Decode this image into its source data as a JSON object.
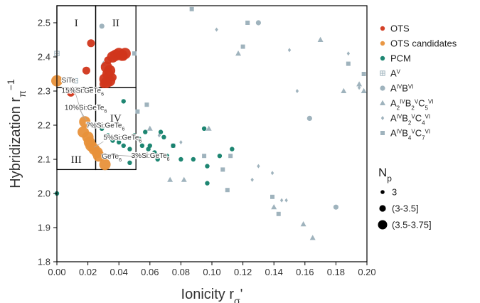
{
  "chart_data": {
    "type": "scatter",
    "title": "",
    "xlabel": "Ionicity r",
    "xlabel_sub": "σ",
    "xlabel_suffix": "'",
    "ylabel": "Hybridization r",
    "ylabel_sub": "π",
    "ylabel_sup": "−1",
    "xlim": [
      0.0,
      0.2
    ],
    "ylim": [
      1.8,
      2.55
    ],
    "xticks": [
      "0.00",
      "0.02",
      "0.04",
      "0.06",
      "0.08",
      "0.10",
      "0.12",
      "0.14",
      "0.16",
      "0.18",
      "0.20"
    ],
    "yticks": [
      "1.8",
      "1.9",
      "2.0",
      "2.1",
      "2.2",
      "2.3",
      "2.4",
      "2.5"
    ],
    "grid": false,
    "legend_position": "right",
    "regions": [
      {
        "label": "I",
        "x": [
          0.0,
          0.025
        ],
        "y": [
          2.31,
          2.55
        ]
      },
      {
        "label": "II",
        "x": [
          0.025,
          0.051
        ],
        "y": [
          2.31,
          2.55
        ]
      },
      {
        "label": "III",
        "x": [
          0.0,
          0.025
        ],
        "y": [
          2.07,
          2.31
        ]
      },
      {
        "label": "IV",
        "x": [
          0.025,
          0.051
        ],
        "y": [
          2.07,
          2.31
        ]
      }
    ],
    "annotations": [
      {
        "text": "SiTe",
        "x": 0.003,
        "y": 2.325
      },
      {
        "text": "15%Si:GeTe",
        "sub": "6",
        "x": 0.003,
        "y": 2.295
      },
      {
        "text": "10%Si:GeTe",
        "sub": "6",
        "x": 0.005,
        "y": 2.245
      },
      {
        "text": "7%Si:GeTe",
        "sub": "6",
        "x": 0.019,
        "y": 2.193
      },
      {
        "text": "5%Si:GeTe",
        "sub": "6",
        "x": 0.03,
        "y": 2.157
      },
      {
        "text": "3%Si:GeTe",
        "sub": "6",
        "x": 0.048,
        "y": 2.104
      },
      {
        "text": "GeTe",
        "sub": "6",
        "x": 0.029,
        "y": 2.102
      }
    ],
    "size_legend": {
      "title": "N",
      "title_sub": "p",
      "entries": [
        "3",
        "(3-3.5]",
        "(3.5-3.75]"
      ]
    },
    "series": [
      {
        "name": "OTS",
        "marker": "circle",
        "color": "#d1361b",
        "points": [
          {
            "x": 0.022,
            "y": 2.44,
            "s": 2
          },
          {
            "x": 0.019,
            "y": 2.36,
            "s": 2
          },
          {
            "x": 0.009,
            "y": 2.295,
            "s": 2
          },
          {
            "x": 0.036,
            "y": 2.4,
            "s": 3
          },
          {
            "x": 0.038,
            "y": 2.405,
            "s": 3
          },
          {
            "x": 0.04,
            "y": 2.41,
            "s": 3
          },
          {
            "x": 0.042,
            "y": 2.405,
            "s": 3
          },
          {
            "x": 0.044,
            "y": 2.41,
            "s": 3
          },
          {
            "x": 0.043,
            "y": 2.4,
            "s": 2
          },
          {
            "x": 0.033,
            "y": 2.39,
            "s": 2
          },
          {
            "x": 0.032,
            "y": 2.37,
            "s": 3
          },
          {
            "x": 0.034,
            "y": 2.36,
            "s": 3
          },
          {
            "x": 0.033,
            "y": 2.35,
            "s": 3
          },
          {
            "x": 0.031,
            "y": 2.335,
            "s": 3
          },
          {
            "x": 0.034,
            "y": 2.33,
            "s": 3
          },
          {
            "x": 0.032,
            "y": 2.325,
            "s": 3
          },
          {
            "x": 0.03,
            "y": 2.32,
            "s": 2
          },
          {
            "x": 0.036,
            "y": 2.34,
            "s": 2
          }
        ]
      },
      {
        "name": "OTS candidates",
        "marker": "circle",
        "color": "#e8913a",
        "points": [
          {
            "x": 0.0,
            "y": 2.33,
            "s": 3
          },
          {
            "x": 0.018,
            "y": 2.21,
            "s": 3
          },
          {
            "x": 0.017,
            "y": 2.18,
            "s": 3
          },
          {
            "x": 0.02,
            "y": 2.165,
            "s": 3
          },
          {
            "x": 0.021,
            "y": 2.15,
            "s": 3
          },
          {
            "x": 0.022,
            "y": 2.14,
            "s": 3
          },
          {
            "x": 0.024,
            "y": 2.13,
            "s": 3
          },
          {
            "x": 0.026,
            "y": 2.12,
            "s": 3
          },
          {
            "x": 0.027,
            "y": 2.11,
            "s": 3
          },
          {
            "x": 0.031,
            "y": 2.085,
            "s": 3
          }
        ]
      },
      {
        "name": "PCM",
        "marker": "circle",
        "color": "#12806a",
        "points": [
          {
            "x": 0.029,
            "y": 2.19,
            "s": 1
          },
          {
            "x": 0.033,
            "y": 2.17,
            "s": 1
          },
          {
            "x": 0.036,
            "y": 2.155,
            "s": 1
          },
          {
            "x": 0.04,
            "y": 2.15,
            "s": 1
          },
          {
            "x": 0.043,
            "y": 2.27,
            "s": 1
          },
          {
            "x": 0.043,
            "y": 2.14,
            "s": 1
          },
          {
            "x": 0.047,
            "y": 2.13,
            "s": 1
          },
          {
            "x": 0.047,
            "y": 2.09,
            "s": 1
          },
          {
            "x": 0.05,
            "y": 2.17,
            "s": 1
          },
          {
            "x": 0.053,
            "y": 2.16,
            "s": 1
          },
          {
            "x": 0.055,
            "y": 2.14,
            "s": 1
          },
          {
            "x": 0.057,
            "y": 2.18,
            "s": 1
          },
          {
            "x": 0.059,
            "y": 2.13,
            "s": 1
          },
          {
            "x": 0.06,
            "y": 2.14,
            "s": 1
          },
          {
            "x": 0.063,
            "y": 2.12,
            "s": 1
          },
          {
            "x": 0.065,
            "y": 2.1,
            "s": 1
          },
          {
            "x": 0.067,
            "y": 2.18,
            "s": 1
          },
          {
            "x": 0.069,
            "y": 2.165,
            "s": 1
          },
          {
            "x": 0.071,
            "y": 2.11,
            "s": 1
          },
          {
            "x": 0.075,
            "y": 2.14,
            "s": 1
          },
          {
            "x": 0.08,
            "y": 2.1,
            "s": 1
          },
          {
            "x": 0.088,
            "y": 2.1,
            "s": 1
          },
          {
            "x": 0.095,
            "y": 2.19,
            "s": 1
          },
          {
            "x": 0.097,
            "y": 2.08,
            "s": 1
          },
          {
            "x": 0.097,
            "y": 2.03,
            "s": 1
          },
          {
            "x": 0.105,
            "y": 2.11,
            "s": 1
          },
          {
            "x": 0.113,
            "y": 2.13,
            "s": 1
          },
          {
            "x": 0.0,
            "y": 2.0,
            "s": 1
          }
        ]
      },
      {
        "name": "A",
        "name_sup": "V",
        "marker": "square-plus",
        "color": "#9fb3bd",
        "points": [
          {
            "x": 0.0,
            "y": 2.41,
            "s": 1
          },
          {
            "x": 0.012,
            "y": 2.33,
            "s": 1
          }
        ]
      },
      {
        "name": "A",
        "name_sup": "IV",
        "name_b": "B",
        "name_b_sup": "VI",
        "marker": "circle-gray",
        "color": "#9fb3bd",
        "points": [
          {
            "x": 0.029,
            "y": 2.49,
            "s": 1
          },
          {
            "x": 0.13,
            "y": 2.5,
            "s": 1
          },
          {
            "x": 0.163,
            "y": 2.22,
            "s": 1
          },
          {
            "x": 0.18,
            "y": 1.96,
            "s": 1
          }
        ]
      },
      {
        "name": "A",
        "name_sup": "IV",
        "name_sub": "2",
        "name_b": "B",
        "name_b_sup": "V",
        "name_b_sub": "2",
        "name_c": "C",
        "name_c_sup": "VI",
        "name_c_sub": "5",
        "marker": "triangle",
        "color": "#9fb3bd",
        "points": [
          {
            "x": 0.03,
            "y": 2.38,
            "s": 1
          },
          {
            "x": 0.06,
            "y": 2.19,
            "s": 1
          },
          {
            "x": 0.073,
            "y": 2.04,
            "s": 1
          },
          {
            "x": 0.082,
            "y": 2.04,
            "s": 1
          },
          {
            "x": 0.098,
            "y": 2.19,
            "s": 1
          },
          {
            "x": 0.117,
            "y": 2.41,
            "s": 1
          },
          {
            "x": 0.14,
            "y": 1.96,
            "s": 1
          },
          {
            "x": 0.159,
            "y": 1.91,
            "s": 1
          },
          {
            "x": 0.165,
            "y": 1.87,
            "s": 1
          },
          {
            "x": 0.17,
            "y": 2.45,
            "s": 1
          },
          {
            "x": 0.185,
            "y": 2.3,
            "s": 1
          },
          {
            "x": 0.195,
            "y": 2.32,
            "s": 1
          },
          {
            "x": 0.198,
            "y": 2.3,
            "s": 1
          }
        ]
      },
      {
        "name": "A",
        "name_sup": "IV",
        "name_b": "B",
        "name_b_sup": "V",
        "name_b_sub": "2",
        "name_c": "C",
        "name_c_sup": "VI",
        "name_c_sub": "4",
        "marker": "diamond",
        "color": "#9fb3bd",
        "points": [
          {
            "x": 0.066,
            "y": 2.17,
            "s": 1
          },
          {
            "x": 0.08,
            "y": 2.15,
            "s": 1
          },
          {
            "x": 0.103,
            "y": 2.48,
            "s": 1
          },
          {
            "x": 0.126,
            "y": 2.04,
            "s": 1
          },
          {
            "x": 0.13,
            "y": 2.08,
            "s": 1
          },
          {
            "x": 0.139,
            "y": 2.06,
            "s": 1
          },
          {
            "x": 0.145,
            "y": 1.98,
            "s": 1
          },
          {
            "x": 0.148,
            "y": 1.98,
            "s": 1
          },
          {
            "x": 0.15,
            "y": 2.42,
            "s": 1
          },
          {
            "x": 0.155,
            "y": 2.3,
            "s": 1
          },
          {
            "x": 0.188,
            "y": 2.41,
            "s": 1
          },
          {
            "x": 0.195,
            "y": 2.31,
            "s": 1
          }
        ]
      },
      {
        "name": "A",
        "name_sup": "IV",
        "name_b": "B",
        "name_b_sup": "V",
        "name_b_sub": "4",
        "name_c": "C",
        "name_c_sup": "VI",
        "name_c_sub": "7",
        "marker": "square",
        "color": "#9fb3bd",
        "points": [
          {
            "x": 0.04,
            "y": 2.4,
            "s": 1
          },
          {
            "x": 0.05,
            "y": 2.41,
            "s": 1
          },
          {
            "x": 0.052,
            "y": 2.24,
            "s": 1
          },
          {
            "x": 0.058,
            "y": 2.26,
            "s": 1
          },
          {
            "x": 0.075,
            "y": 2.14,
            "s": 1
          },
          {
            "x": 0.087,
            "y": 2.54,
            "s": 1
          },
          {
            "x": 0.095,
            "y": 2.11,
            "s": 1
          },
          {
            "x": 0.107,
            "y": 2.07,
            "s": 1
          },
          {
            "x": 0.11,
            "y": 2.01,
            "s": 1
          },
          {
            "x": 0.12,
            "y": 2.43,
            "s": 1
          },
          {
            "x": 0.123,
            "y": 2.5,
            "s": 1
          },
          {
            "x": 0.139,
            "y": 1.99,
            "s": 1
          },
          {
            "x": 0.143,
            "y": 1.94,
            "s": 1
          },
          {
            "x": 0.188,
            "y": 2.38,
            "s": 1
          },
          {
            "x": 0.198,
            "y": 2.35,
            "s": 1
          },
          {
            "x": 0.112,
            "y": 2.11,
            "s": 1
          }
        ]
      }
    ]
  }
}
